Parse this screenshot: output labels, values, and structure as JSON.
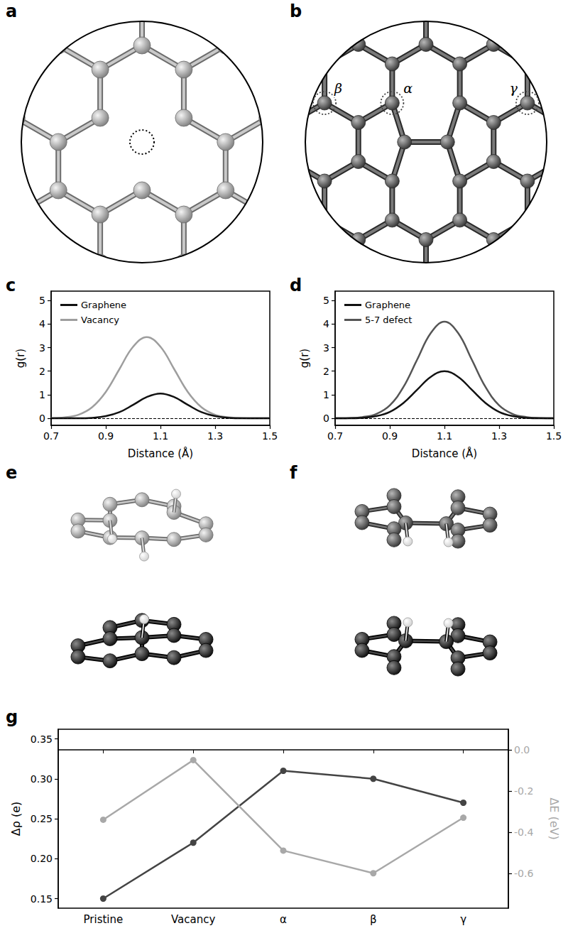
{
  "diagrams": [
    {
      "panel": "a"
    },
    {
      "panel": "b",
      "site_labels": [
        "α",
        "β",
        "γ"
      ]
    },
    {
      "panel": "e"
    },
    {
      "panel": "f"
    }
  ],
  "chart_data": [
    {
      "panel": "c",
      "type": "line",
      "xlabel": "Distance (Å)",
      "ylabel": "g(r)",
      "x": [
        0.7,
        0.75,
        0.8,
        0.85,
        0.9,
        0.95,
        1.0,
        1.05,
        1.1,
        1.15,
        1.2,
        1.25,
        1.3,
        1.35,
        1.4,
        1.45,
        1.5
      ],
      "series": [
        {
          "name": "Graphene",
          "color": "#111111",
          "values": [
            0,
            0,
            0,
            0.02,
            0.09,
            0.26,
            0.57,
            0.9,
            1.05,
            0.9,
            0.57,
            0.26,
            0.09,
            0.02,
            0,
            0,
            0
          ]
        },
        {
          "name": "Vacancy",
          "color": "#9e9e9e",
          "values": [
            0.01,
            0.04,
            0.15,
            0.47,
            1.12,
            2.09,
            3.04,
            3.45,
            3.04,
            2.09,
            1.12,
            0.47,
            0.15,
            0.04,
            0.01,
            0,
            0
          ]
        }
      ],
      "xlim": [
        0.7,
        1.5
      ],
      "xticks": [
        0.7,
        0.9,
        1.1,
        1.3,
        1.5
      ],
      "ylim": [
        -0.3,
        5.4
      ],
      "yticks": [
        0,
        1,
        2,
        3,
        4,
        5
      ],
      "hlines": [
        0
      ],
      "legend": "upper left"
    },
    {
      "panel": "d",
      "type": "line",
      "xlabel": "Distance (Å)",
      "ylabel": "g(r)",
      "x": [
        0.7,
        0.75,
        0.8,
        0.85,
        0.9,
        0.95,
        1.0,
        1.05,
        1.1,
        1.15,
        1.2,
        1.25,
        1.3,
        1.35,
        1.4,
        1.45,
        1.5
      ],
      "series": [
        {
          "name": "Graphene",
          "color": "#111111",
          "values": [
            0,
            0,
            0.02,
            0.09,
            0.27,
            0.65,
            1.21,
            1.76,
            2.0,
            1.76,
            1.21,
            0.65,
            0.27,
            0.09,
            0.02,
            0,
            0
          ]
        },
        {
          "name": "5-7 defect",
          "color": "#555555",
          "values": [
            0,
            0.01,
            0.05,
            0.18,
            0.55,
            1.33,
            2.49,
            3.62,
            4.1,
            3.62,
            2.49,
            1.33,
            0.55,
            0.18,
            0.05,
            0.01,
            0
          ]
        }
      ],
      "xlim": [
        0.7,
        1.5
      ],
      "xticks": [
        0.7,
        0.9,
        1.1,
        1.3,
        1.5
      ],
      "ylim": [
        -0.3,
        5.4
      ],
      "yticks": [
        0,
        1,
        2,
        3,
        4,
        5
      ],
      "hlines": [
        0
      ],
      "legend": "upper left"
    },
    {
      "panel": "g",
      "type": "line",
      "ylabel": "Δρ (e)",
      "y2label": "ΔE (eV)",
      "categories": [
        "Pristine",
        "Vacancy",
        "α",
        "β",
        "γ"
      ],
      "series": [
        {
          "color": "#444444",
          "marker": "circle",
          "values": [
            0.15,
            0.22,
            0.31,
            0.3,
            0.27
          ]
        },
        {
          "color": "#a8a8a8",
          "marker": "circle",
          "axis": "y2",
          "values": [
            -0.34,
            -0.05,
            -0.49,
            -0.6,
            -0.33
          ]
        }
      ],
      "ylim": [
        0.138,
        0.362
      ],
      "yticks": [
        0.15,
        {
          "value": 0.2,
          "label": "0.20"
        },
        0.25,
        {
          "value": 0.3,
          "label": "0.30"
        },
        0.35
      ],
      "y2lim": [
        -0.77,
        0.1
      ],
      "y2ticks": [
        {
          "value": 0,
          "label": "0.0"
        },
        -0.2,
        -0.4,
        -0.6
      ]
    }
  ]
}
